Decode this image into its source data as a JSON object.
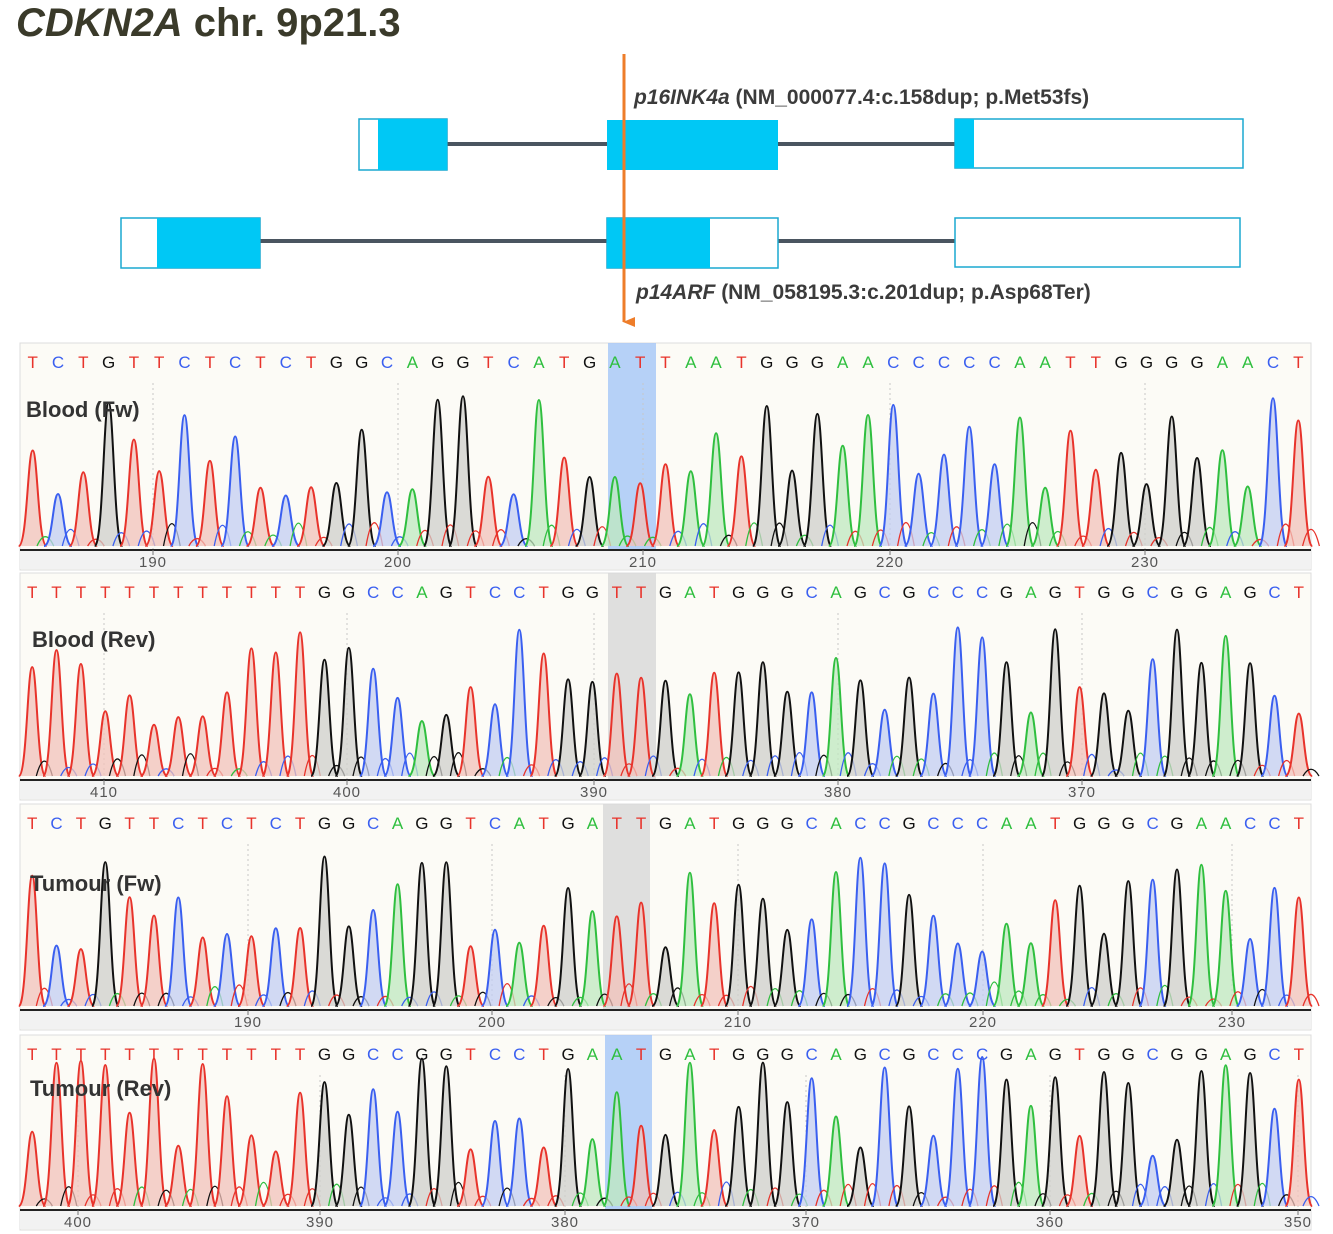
{
  "figure": {
    "gene_title_italic": "CDKN2A",
    "gene_title_rest": " chr. 9p21.3",
    "transcripts": [
      {
        "name": "p16INK4a",
        "detail": " (NM_000077.4:c.158dup; p.Met53fs)"
      },
      {
        "name": "p14ARF",
        "detail": " (NM_058195.3:c.201dup; p.Asp68Ter)"
      }
    ]
  },
  "colors": {
    "A": "#2fbf3f",
    "C": "#3a5ff0",
    "G": "#111111",
    "T": "#e8332b",
    "exon_coding": "#00c8f5",
    "exon_border": "#1aa9d0",
    "intron": "#4a5560",
    "arrow": "#ee7d2a",
    "panel_bg": "#fcfbf6",
    "highlight_blue": "#a9c9f7",
    "highlight_gray": "#d9d9d9"
  },
  "panels": [
    {
      "label": "Blood (Fw)",
      "bases": "TCTGTTCTCTCTGGCAGGTCATGATTAATGGGAACCCCCAATTGGGGAACT",
      "highlight": "blue",
      "ticks": [
        "190",
        "200",
        "210",
        "220",
        "230"
      ]
    },
    {
      "label": "Blood (Rev)",
      "bases": "TTTTTTTTTTTTGGCCAGTCCTGGTTGATGGGCAGCGCCCGAGTGGCGGAGCT",
      "highlight": "gray",
      "ticks": [
        "410",
        "400",
        "390",
        "380",
        "370"
      ]
    },
    {
      "label": "Tumour (Fw)",
      "bases": "TCTGTTCTCTCTGGCAGGTCATGATTGATGGGCACCGCCCAATGGGCGAACCT",
      "highlight": "gray",
      "ticks": [
        "190",
        "200",
        "210",
        "220",
        "230"
      ]
    },
    {
      "label": "Tumour (Rev)",
      "bases": "TTTTTTTTTTTTGGCCGGTCCTGAATGATGGGCAGCGCCCGAGTGGCGGAGCT",
      "highlight": "blue",
      "ticks": [
        "400",
        "390",
        "380",
        "370",
        "360",
        "350"
      ]
    }
  ]
}
